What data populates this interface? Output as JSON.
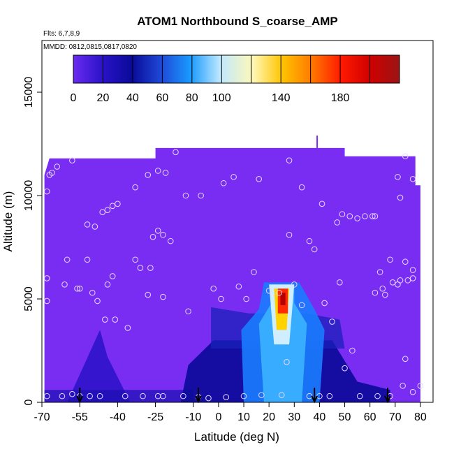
{
  "chart_data": {
    "type": "heatmap",
    "title": "ATOM1 Northbound S_coarse_AMP",
    "annotations": [
      "Flts: 6,7,8,9",
      "MMDD: 0812,0815,0817,0820"
    ],
    "xlabel": "Latitude (deg N)",
    "ylabel": "Altitude (m)",
    "xlim": [
      -70,
      85
    ],
    "ylim": [
      0,
      17500
    ],
    "x_ticks": [
      -70,
      -55,
      -40,
      -25,
      -10,
      0,
      10,
      20,
      30,
      40,
      50,
      60,
      70,
      80
    ],
    "x_tick_labels": [
      "-70",
      "-55",
      "-40",
      "-25",
      "-10",
      "0",
      "10",
      "20",
      "30",
      "40",
      "50",
      "60",
      "70",
      "80"
    ],
    "y_ticks": [
      0,
      5000,
      10000,
      15000
    ],
    "y_tick_labels": [
      "0",
      "5000",
      "10000",
      "15000"
    ],
    "colorbar": {
      "range": [
        0,
        220
      ],
      "ticks": [
        0,
        20,
        40,
        60,
        80,
        100,
        140,
        180
      ],
      "tick_labels": [
        "0",
        "20",
        "40",
        "60",
        "80",
        "100",
        "140",
        "180"
      ],
      "dividers": [
        20,
        40,
        60,
        80,
        100,
        120,
        140,
        160,
        180,
        200
      ],
      "colors": [
        "#6a2bf0",
        "#1a10c0",
        "#0a0a99",
        "#1e5ae0",
        "#1aa6ff",
        "#c8ecff",
        "#fff6a0",
        "#ffb000",
        "#ff3a00",
        "#e00000",
        "#9b1010"
      ]
    },
    "field": {
      "background_value": 10,
      "upper_boundary": [
        [
          -69,
          11000
        ],
        [
          -67,
          11800
        ],
        [
          -25,
          11800
        ],
        [
          -25,
          12300
        ],
        [
          50,
          12300
        ],
        [
          50,
          11900
        ],
        [
          78,
          11900
        ],
        [
          78,
          10500
        ],
        [
          80,
          10500
        ]
      ],
      "features": [
        {
          "name": "tropical plume",
          "lat_range": [
            18,
            32
          ],
          "alt_range": [
            0,
            5800
          ],
          "peak_value": 200,
          "peak_lat": 25,
          "peak_alt": 5200
        },
        {
          "name": "southern low layer",
          "lat_range": [
            -60,
            -35
          ],
          "alt_range": [
            0,
            3500
          ],
          "peak_value": 25
        },
        {
          "name": "mid-latitude low layer",
          "lat_range": [
            -15,
            55
          ],
          "alt_range": [
            0,
            3000
          ],
          "peak_value": 40
        }
      ]
    },
    "sample_points": [
      [
        -68,
        10200
      ],
      [
        -67,
        11000
      ],
      [
        -66,
        11100
      ],
      [
        -64,
        11400
      ],
      [
        -58,
        11700
      ],
      [
        -52,
        8600
      ],
      [
        -49,
        8500
      ],
      [
        -46,
        9200
      ],
      [
        -44,
        9300
      ],
      [
        -42,
        9500
      ],
      [
        -40,
        9600
      ],
      [
        -33,
        10400
      ],
      [
        -28,
        11000
      ],
      [
        -24,
        11200
      ],
      [
        -21,
        11100
      ],
      [
        -17,
        12100
      ],
      [
        -13,
        10000
      ],
      [
        -7,
        10000
      ],
      [
        2,
        10600
      ],
      [
        6,
        10900
      ],
      [
        16,
        10800
      ],
      [
        28,
        11700
      ],
      [
        33,
        10400
      ],
      [
        41,
        9600
      ],
      [
        49,
        9100
      ],
      [
        52,
        9000
      ],
      [
        55,
        8900
      ],
      [
        58,
        9000
      ],
      [
        62,
        9000
      ],
      [
        -26,
        8000
      ],
      [
        -24,
        8300
      ],
      [
        -22,
        8100
      ],
      [
        -19,
        7800
      ],
      [
        -33,
        6900
      ],
      [
        -31,
        6500
      ],
      [
        -27,
        6500
      ],
      [
        -42,
        6100
      ],
      [
        -44,
        5700
      ],
      [
        -52,
        6900
      ],
      [
        -60,
        6900
      ],
      [
        -68,
        6000
      ],
      [
        -61,
        5700
      ],
      [
        -56,
        5500
      ],
      [
        -55,
        5500
      ],
      [
        -50,
        5300
      ],
      [
        -68,
        4900
      ],
      [
        -48,
        4900
      ],
      [
        -45,
        4000
      ],
      [
        -41,
        4000
      ],
      [
        -36,
        3600
      ],
      [
        -28,
        5200
      ],
      [
        -22,
        5100
      ],
      [
        -12,
        4400
      ],
      [
        -2,
        5500
      ],
      [
        1,
        5000
      ],
      [
        8,
        5600
      ],
      [
        11,
        5000
      ],
      [
        14,
        6300
      ],
      [
        20,
        5400
      ],
      [
        24,
        5300
      ],
      [
        28,
        8100
      ],
      [
        30,
        5700
      ],
      [
        33,
        4700
      ],
      [
        36,
        7800
      ],
      [
        38,
        7400
      ],
      [
        42,
        4800
      ],
      [
        45,
        3900
      ],
      [
        47,
        8700
      ],
      [
        48,
        5800
      ],
      [
        53,
        2500
      ],
      [
        62,
        5300
      ],
      [
        64,
        6300
      ],
      [
        65,
        5500
      ],
      [
        66,
        5200
      ],
      [
        68,
        6900
      ],
      [
        69,
        5800
      ],
      [
        71,
        5700
      ],
      [
        72,
        5900
      ],
      [
        74,
        6800
      ],
      [
        75,
        5900
      ],
      [
        77,
        6400
      ],
      [
        77,
        6000
      ],
      [
        74,
        2100
      ],
      [
        71,
        10900
      ],
      [
        72,
        9900
      ],
      [
        74,
        11900
      ],
      [
        77,
        10800
      ],
      [
        61,
        9000
      ],
      [
        -68,
        300
      ],
      [
        -62,
        300
      ],
      [
        -58,
        400
      ],
      [
        -55,
        300
      ],
      [
        -51,
        300
      ],
      [
        -47,
        300
      ],
      [
        -37,
        300
      ],
      [
        -30,
        300
      ],
      [
        -24,
        300
      ],
      [
        -22,
        300
      ],
      [
        -14,
        300
      ],
      [
        -8,
        250
      ],
      [
        -4,
        200
      ],
      [
        3,
        250
      ],
      [
        10,
        300
      ],
      [
        17,
        350
      ],
      [
        25,
        350
      ],
      [
        36,
        300
      ],
      [
        40,
        300
      ],
      [
        44,
        300
      ],
      [
        50,
        1650
      ],
      [
        56,
        300
      ],
      [
        63,
        300
      ],
      [
        68,
        300
      ],
      [
        73,
        800
      ],
      [
        77,
        500
      ],
      [
        80,
        800
      ],
      [
        27,
        1950
      ]
    ],
    "arrows": [
      {
        "lat": -55,
        "description": "down arrow"
      },
      {
        "lat": -8,
        "description": "down arrow"
      },
      {
        "lat": 38,
        "description": "down arrow"
      },
      {
        "lat": 67,
        "description": "down arrow"
      }
    ],
    "legend": "none",
    "grid": false
  }
}
